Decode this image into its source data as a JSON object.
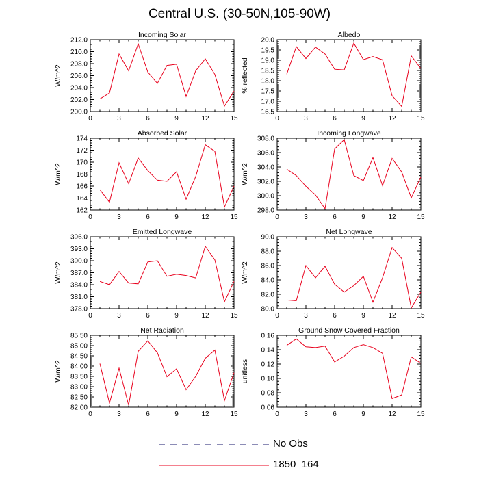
{
  "page": {
    "title": "Central U.S. (30-50N,105-90W)"
  },
  "legend": {
    "items": [
      {
        "label": "No Obs",
        "style": "dashed",
        "color": "#1a1a6e"
      },
      {
        "label": "1850_164",
        "style": "solid",
        "color": "#e8001c"
      }
    ]
  },
  "chart_data": [
    {
      "type": "line",
      "title": "Incoming Solar",
      "ylabel": "W/m^2",
      "xlim": [
        0,
        15
      ],
      "ylim": [
        200,
        212
      ],
      "xticks": [
        "0",
        "3",
        "6",
        "9",
        "12",
        "15"
      ],
      "yticks": [
        "200.0",
        "202.0",
        "204.0",
        "206.0",
        "208.0",
        "210.0",
        "212.0"
      ],
      "x": [
        1,
        2,
        3,
        4,
        5,
        6,
        7,
        8,
        9,
        10,
        11,
        12,
        13,
        14,
        15
      ],
      "series": [
        {
          "name": "1850_164",
          "values": [
            202.1,
            203.1,
            209.6,
            206.8,
            211.3,
            206.6,
            204.7,
            207.7,
            207.9,
            202.5,
            206.8,
            208.8,
            206.2,
            200.9,
            203.4
          ]
        }
      ]
    },
    {
      "type": "line",
      "title": "Albedo",
      "ylabel": "% reflected",
      "xlim": [
        0,
        15
      ],
      "ylim": [
        16.5,
        20
      ],
      "xticks": [
        "0",
        "3",
        "6",
        "9",
        "12",
        "15"
      ],
      "yticks": [
        "16.5",
        "17.0",
        "17.5",
        "18.0",
        "18.5",
        "19.0",
        "19.5",
        "20.0"
      ],
      "x": [
        1,
        2,
        3,
        4,
        5,
        6,
        7,
        8,
        9,
        10,
        11,
        12,
        13,
        14,
        15
      ],
      "series": [
        {
          "name": "1850_164",
          "values": [
            18.32,
            19.66,
            19.08,
            19.64,
            19.3,
            18.56,
            18.53,
            19.83,
            19.03,
            19.18,
            19.02,
            17.27,
            16.75,
            19.21,
            18.6
          ]
        }
      ]
    },
    {
      "type": "line",
      "title": "Absorbed Solar",
      "ylabel": "W/m^2",
      "xlim": [
        0,
        15
      ],
      "ylim": [
        162,
        174
      ],
      "xticks": [
        "0",
        "3",
        "6",
        "9",
        "12",
        "15"
      ],
      "yticks": [
        "162",
        "164",
        "166",
        "168",
        "170",
        "172",
        "174"
      ],
      "x": [
        1,
        2,
        3,
        4,
        5,
        6,
        7,
        8,
        9,
        10,
        11,
        12,
        13,
        14,
        15
      ],
      "series": [
        {
          "name": "1850_164",
          "values": [
            165.4,
            163.3,
            169.9,
            166.4,
            170.7,
            168.6,
            167.0,
            166.8,
            168.4,
            163.8,
            167.6,
            172.9,
            171.8,
            162.5,
            166.0
          ]
        }
      ]
    },
    {
      "type": "line",
      "title": "Incoming Longwave",
      "ylabel": "W/m^2",
      "xlim": [
        0,
        15
      ],
      "ylim": [
        298,
        308
      ],
      "xticks": [
        "0",
        "3",
        "6",
        "9",
        "12",
        "15"
      ],
      "yticks": [
        "298.0",
        "300.0",
        "302.0",
        "304.0",
        "306.0",
        "308.0"
      ],
      "x": [
        1,
        2,
        3,
        4,
        5,
        6,
        7,
        8,
        9,
        10,
        11,
        12,
        13,
        14,
        15
      ],
      "series": [
        {
          "name": "1850_164",
          "values": [
            303.7,
            302.8,
            301.3,
            300.1,
            298.2,
            306.5,
            307.8,
            302.8,
            302.1,
            305.3,
            301.4,
            305.2,
            303.3,
            299.7,
            302.6
          ]
        }
      ]
    },
    {
      "type": "line",
      "title": "Emitted Longwave",
      "ylabel": "W/m^2",
      "xlim": [
        0,
        15
      ],
      "ylim": [
        378,
        396
      ],
      "xticks": [
        "0",
        "3",
        "6",
        "9",
        "12",
        "15"
      ],
      "yticks": [
        "378.0",
        "381.0",
        "384.0",
        "387.0",
        "390.0",
        "393.0",
        "396.0"
      ],
      "x": [
        1,
        2,
        3,
        4,
        5,
        6,
        7,
        8,
        9,
        10,
        11,
        12,
        13,
        14,
        15
      ],
      "series": [
        {
          "name": "1850_164",
          "values": [
            384.8,
            384.0,
            387.3,
            384.4,
            384.2,
            389.7,
            390.0,
            386.1,
            386.6,
            386.3,
            385.7,
            393.6,
            390.2,
            379.7,
            384.8
          ]
        }
      ]
    },
    {
      "type": "line",
      "title": "Net Longwave",
      "ylabel": "W/m^2",
      "xlim": [
        0,
        15
      ],
      "ylim": [
        80,
        90
      ],
      "xticks": [
        "0",
        "3",
        "6",
        "9",
        "12",
        "15"
      ],
      "yticks": [
        "80.0",
        "82.0",
        "84.0",
        "86.0",
        "88.0",
        "90.0"
      ],
      "x": [
        1,
        2,
        3,
        4,
        5,
        6,
        7,
        8,
        9,
        10,
        11,
        12,
        13,
        14,
        15
      ],
      "series": [
        {
          "name": "1850_164",
          "values": [
            81.2,
            81.1,
            86.0,
            84.3,
            85.9,
            83.4,
            82.3,
            83.2,
            84.5,
            80.9,
            84.3,
            88.5,
            87.0,
            80.1,
            82.3
          ]
        }
      ]
    },
    {
      "type": "line",
      "title": "Net Radiation",
      "ylabel": "W/m^2",
      "xlim": [
        0,
        15
      ],
      "ylim": [
        82,
        85.5
      ],
      "xticks": [
        "0",
        "3",
        "6",
        "9",
        "12",
        "15"
      ],
      "yticks": [
        "82.00",
        "82.50",
        "83.00",
        "83.50",
        "84.00",
        "84.50",
        "85.00",
        "85.50"
      ],
      "x": [
        1,
        2,
        3,
        4,
        5,
        6,
        7,
        8,
        9,
        10,
        11,
        12,
        13,
        14,
        15
      ],
      "series": [
        {
          "name": "1850_164",
          "values": [
            84.12,
            82.2,
            83.9,
            82.1,
            84.72,
            85.23,
            84.65,
            83.48,
            83.87,
            82.85,
            83.5,
            84.38,
            84.78,
            82.32,
            83.68
          ]
        }
      ]
    },
    {
      "type": "line",
      "title": "Ground Snow Covered Fraction",
      "ylabel": "unitless",
      "xlim": [
        0,
        15
      ],
      "ylim": [
        0.06,
        0.16
      ],
      "xticks": [
        "0",
        "3",
        "6",
        "9",
        "12",
        "15"
      ],
      "yticks": [
        "0.06",
        "0.08",
        "0.10",
        "0.12",
        "0.14",
        "0.16"
      ],
      "x": [
        1,
        2,
        3,
        4,
        5,
        6,
        7,
        8,
        9,
        10,
        11,
        12,
        13,
        14,
        15
      ],
      "series": [
        {
          "name": "1850_164",
          "values": [
            0.146,
            0.155,
            0.144,
            0.143,
            0.145,
            0.123,
            0.131,
            0.143,
            0.147,
            0.143,
            0.135,
            0.072,
            0.077,
            0.13,
            0.121
          ]
        }
      ]
    }
  ]
}
